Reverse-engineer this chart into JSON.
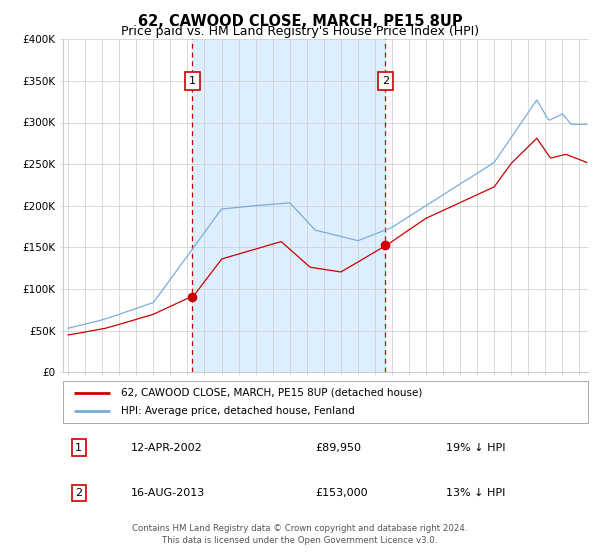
{
  "title": "62, CAWOOD CLOSE, MARCH, PE15 8UP",
  "subtitle": "Price paid vs. HM Land Registry's House Price Index (HPI)",
  "ylim": [
    0,
    400000
  ],
  "yticks": [
    0,
    50000,
    100000,
    150000,
    200000,
    250000,
    300000,
    350000,
    400000
  ],
  "ytick_labels": [
    "£0",
    "£50K",
    "£100K",
    "£150K",
    "£200K",
    "£250K",
    "£300K",
    "£350K",
    "£400K"
  ],
  "xlim_start": 1994.7,
  "xlim_end": 2025.5,
  "sale1_date": 2002.28,
  "sale1_price": 89950,
  "sale1_label": "1",
  "sale2_date": 2013.62,
  "sale2_price": 153000,
  "sale2_label": "2",
  "shaded_color": "#ddeeff",
  "red_line_color": "#cc0000",
  "blue_line_color": "#7aaddb",
  "dashed_line_color": "#cc0000",
  "background_color": "#ffffff",
  "grid_color": "#cccccc",
  "legend1_label": "62, CAWOOD CLOSE, MARCH, PE15 8UP (detached house)",
  "legend2_label": "HPI: Average price, detached house, Fenland",
  "annotation1_date": "12-APR-2002",
  "annotation1_price": "£89,950",
  "annotation1_hpi": "19% ↓ HPI",
  "annotation2_date": "16-AUG-2013",
  "annotation2_price": "£153,000",
  "annotation2_hpi": "13% ↓ HPI",
  "footer1": "Contains HM Land Registry data © Crown copyright and database right 2024.",
  "footer2": "This data is licensed under the Open Government Licence v3.0.",
  "title_fontsize": 10.5,
  "subtitle_fontsize": 9
}
